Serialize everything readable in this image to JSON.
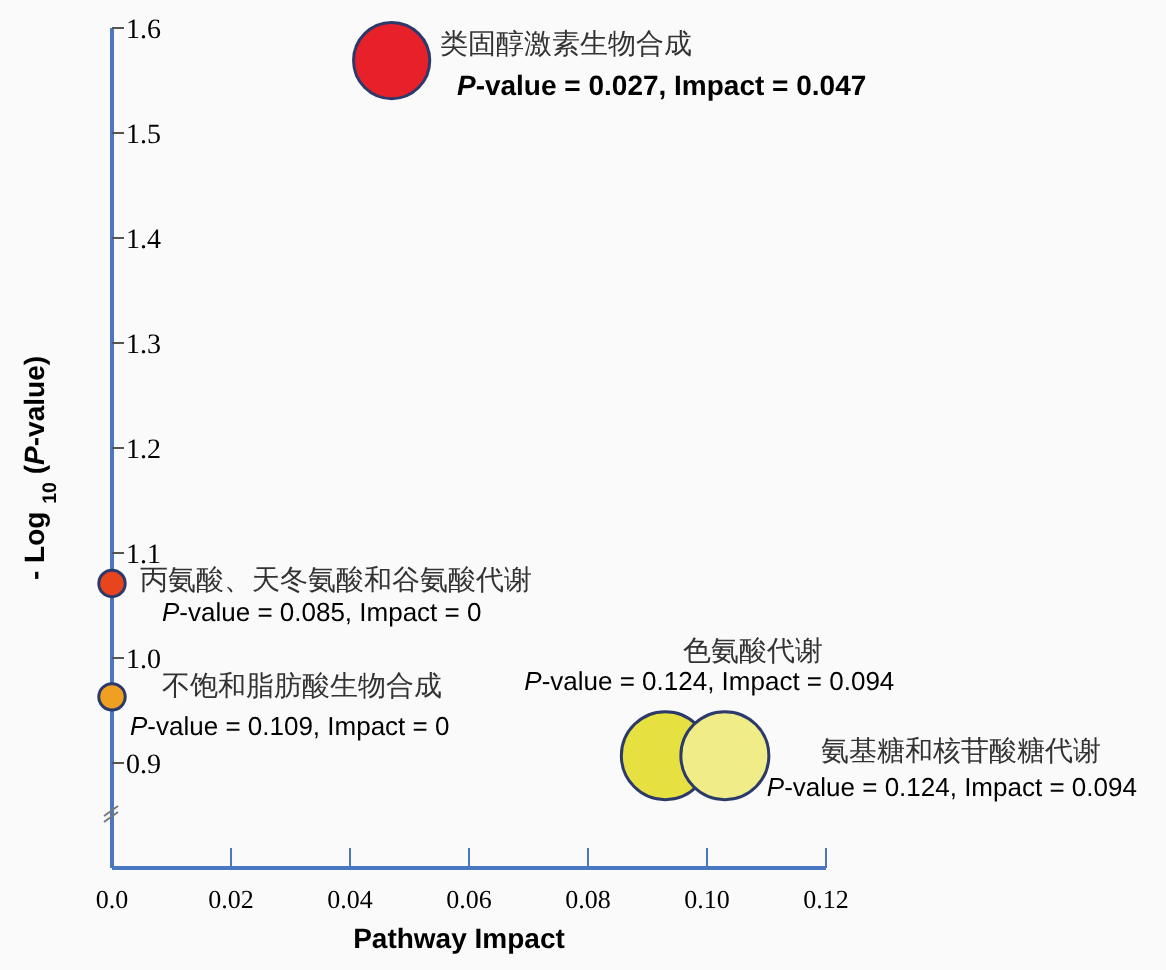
{
  "chart_data": {
    "type": "bubble",
    "xlabel": "Pathway Impact",
    "ylabel": "- Log $_{10}$ (*P*-value)",
    "xlim": [
      0,
      0.12
    ],
    "ylim": [
      0.8,
      1.6
    ],
    "xticks": [
      {
        "value": 0,
        "label": "0.0"
      },
      0.02,
      0.04,
      0.06,
      0.08,
      {
        "value": 0.1,
        "label": "0.10"
      },
      0.12
    ],
    "yticks": [
      0.9,
      {
        "value": 1.0,
        "label": "1.0"
      },
      1.1,
      1.2,
      1.3,
      1.4,
      1.5,
      1.6
    ],
    "series": [
      {
        "name": "类固醇激素生物合成",
        "color": "#e8202a",
        "x": [
          0.047
        ],
        "values": [
          1.569
        ],
        "sizes": [
          0.75
        ]
      },
      {
        "name": "丙氨酸、天冬氨酸和谷氨酸代谢",
        "color": "#e8441e",
        "x": [
          0
        ],
        "values": [
          1.071
        ],
        "sizes": [
          0.09
        ]
      },
      {
        "name": "不饱和脂肪酸生物合成",
        "color": "#f0a020",
        "x": [
          0
        ],
        "values": [
          0.963
        ],
        "sizes": [
          0.09
        ]
      },
      {
        "name": "色氨酸代谢",
        "color": "#e6e040",
        "x": [
          0.093
        ],
        "values": [
          0.907
        ],
        "sizes": [
          1
        ]
      },
      {
        "name": "氨基糖和核苷酸糖代谢",
        "color": "#f0ec88",
        "x": [
          0.103
        ],
        "values": [
          0.907
        ],
        "sizes": [
          1
        ]
      }
    ],
    "annotations": [
      {
        "text": "*P*-value = 0.027, Impact = 0.047",
        "x": 0.047,
        "y": 1.569
      },
      {
        "text": "*P*-value = 0.085, Impact = 0",
        "x": 0,
        "y": 1.071
      },
      {
        "text": "*P*-value = 0.109, Impact = 0",
        "x": 0,
        "y": 0.963
      },
      {
        "text": "*P*-value = 0.124, Impact = 0.094",
        "x": 0.093,
        "y": 0.907
      },
      {
        "text": "*P*-value = 0.124, Impact = 0.094",
        "x": 0.103,
        "y": 0.907
      }
    ]
  }
}
